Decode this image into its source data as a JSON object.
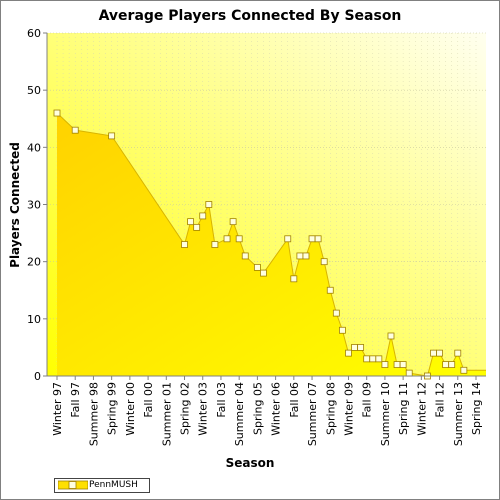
{
  "chart_data": {
    "type": "area",
    "title": "Average Players Connected By Season",
    "xlabel": "Season",
    "ylabel": "Players Connected",
    "ylim": [
      0,
      60
    ],
    "yticks": [
      0,
      10,
      20,
      30,
      40,
      50,
      60
    ],
    "grid": true,
    "legend_position": "bottom-left",
    "x_tick_labels": [
      "Winter 97",
      "Fall 97",
      "Summer 98",
      "Spring 99",
      "Winter 00",
      "Fall 00",
      "Summer 01",
      "Spring 02",
      "Winter 03",
      "Fall 03",
      "Summer 04",
      "Spring 05",
      "Winter 06",
      "Fall 06",
      "Summer 07",
      "Spring 08",
      "Winter 09",
      "Fall 09",
      "Summer 10",
      "Spring 11",
      "Winter 12",
      "Fall 12",
      "Summer 13",
      "Spring 14"
    ],
    "series": [
      {
        "name": "PennMUSH",
        "color": "#ffe000",
        "marker": "square",
        "points": [
          {
            "x": "Winter 97",
            "y": 46
          },
          {
            "x": "Fall 97",
            "y": 43
          },
          {
            "x": "Spring 99",
            "y": 42
          },
          {
            "x": "Spring 02",
            "y": 23
          },
          {
            "x": "Summer 02",
            "y": 27
          },
          {
            "x": "Fall 02",
            "y": 26
          },
          {
            "x": "Winter 03",
            "y": 28
          },
          {
            "x": "Spring 03",
            "y": 30
          },
          {
            "x": "Summer 03",
            "y": 23
          },
          {
            "x": "Winter 04",
            "y": 24
          },
          {
            "x": "Spring 04",
            "y": 27
          },
          {
            "x": "Summer 04",
            "y": 24
          },
          {
            "x": "Fall 04",
            "y": 21
          },
          {
            "x": "Spring 05",
            "y": 19
          },
          {
            "x": "Summer 05",
            "y": 18
          },
          {
            "x": "Summer 06",
            "y": 24
          },
          {
            "x": "Fall 06",
            "y": 17
          },
          {
            "x": "Winter 07",
            "y": 21
          },
          {
            "x": "Spring 07",
            "y": 21
          },
          {
            "x": "Summer 07",
            "y": 24
          },
          {
            "x": "Fall 07",
            "y": 24
          },
          {
            "x": "Winter 08",
            "y": 20
          },
          {
            "x": "Spring 08",
            "y": 15
          },
          {
            "x": "Summer 08",
            "y": 11
          },
          {
            "x": "Fall 08",
            "y": 8
          },
          {
            "x": "Winter 09",
            "y": 4
          },
          {
            "x": "Spring 09",
            "y": 5
          },
          {
            "x": "Summer 09",
            "y": 5
          },
          {
            "x": "Fall 09",
            "y": 3
          },
          {
            "x": "Winter 10",
            "y": 3
          },
          {
            "x": "Spring 10",
            "y": 3
          },
          {
            "x": "Summer 10",
            "y": 2
          },
          {
            "x": "Fall 10",
            "y": 7
          },
          {
            "x": "Winter 11",
            "y": 2
          },
          {
            "x": "Spring 11",
            "y": 2
          },
          {
            "x": "Summer 11",
            "y": 0.5
          },
          {
            "x": "Spring 12",
            "y": 0
          },
          {
            "x": "Summer 12",
            "y": 4
          },
          {
            "x": "Fall 12",
            "y": 4
          },
          {
            "x": "Winter 13",
            "y": 2
          },
          {
            "x": "Spring 13",
            "y": 2
          },
          {
            "x": "Summer 13",
            "y": 4
          },
          {
            "x": "Fall 13",
            "y": 1
          }
        ]
      }
    ]
  }
}
